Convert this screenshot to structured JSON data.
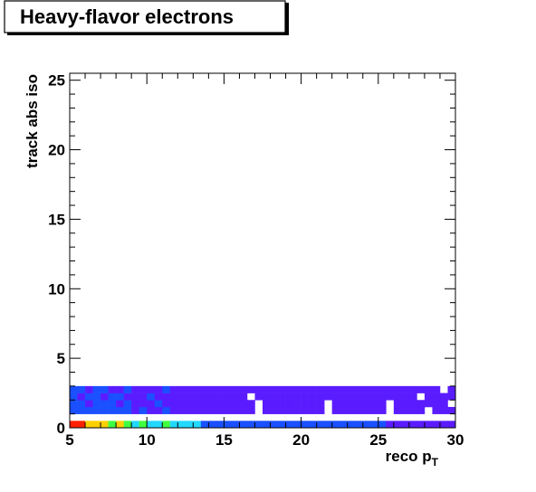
{
  "chart_data": {
    "type": "heatmap",
    "title": "Heavy-flavor electrons",
    "xlabel": "reco p",
    "xlabel_subscript": "T",
    "ylabel": "track abs iso",
    "xlim": [
      5,
      30
    ],
    "ylim": [
      0,
      25.5
    ],
    "x_ticks": [
      "5",
      "10",
      "15",
      "20",
      "25",
      "30"
    ],
    "y_ticks": [
      "0",
      "5",
      "10",
      "15",
      "20",
      "25"
    ],
    "x_bin_width": 0.5,
    "colormap": "rainbow (violet = low, red = high)",
    "rows": [
      {
        "name": "iso 0-0.5",
        "y_range": [
          0,
          0.5
        ],
        "values": [
          10,
          10,
          9,
          8,
          9,
          7,
          8,
          6,
          5,
          6,
          5,
          5,
          6,
          4,
          4,
          5,
          4,
          3,
          3,
          3,
          3,
          3,
          3,
          3,
          2,
          2,
          2,
          2,
          2,
          2,
          2,
          2,
          2,
          2,
          2,
          2,
          2,
          2,
          2,
          2,
          2,
          1,
          1,
          1,
          1,
          1,
          1,
          1,
          1,
          1
        ]
      },
      {
        "name": "iso 0.5-1.0",
        "y_range": [
          0.5,
          1.0
        ],
        "values": [
          0,
          0,
          0,
          0,
          0,
          0,
          0,
          0,
          0,
          0,
          0,
          0,
          0,
          0,
          0,
          0,
          0,
          0,
          0,
          0,
          0,
          0,
          0,
          0,
          0,
          0,
          0,
          0,
          0,
          0,
          0,
          0,
          0,
          0,
          0,
          0,
          0,
          0,
          0,
          0,
          0,
          0,
          0,
          0,
          0,
          0,
          0,
          0,
          0,
          0
        ]
      },
      {
        "name": "iso 1.0-1.5",
        "y_range": [
          1.0,
          1.5
        ],
        "values": [
          2,
          2,
          3,
          2,
          2,
          2,
          2,
          2,
          1,
          2,
          1,
          1,
          2,
          1,
          1,
          1,
          1,
          1,
          1,
          1,
          1,
          1,
          1,
          1,
          0,
          1,
          1,
          1,
          1,
          1,
          1,
          1,
          1,
          0,
          1,
          1,
          1,
          1,
          1,
          1,
          1,
          0,
          1,
          1,
          1,
          1,
          0,
          1,
          1,
          1
        ]
      },
      {
        "name": "iso 1.5-2.0",
        "y_range": [
          1.5,
          2.0
        ],
        "values": [
          2,
          2,
          1,
          2,
          2,
          2,
          1,
          2,
          1,
          1,
          1,
          2,
          1,
          1,
          1,
          1,
          1,
          1,
          1,
          1,
          1,
          1,
          1,
          1,
          0,
          1,
          1,
          1,
          1,
          1,
          1,
          1,
          1,
          0,
          1,
          1,
          1,
          1,
          1,
          1,
          1,
          0,
          1,
          1,
          1,
          1,
          1,
          1,
          1,
          0
        ]
      },
      {
        "name": "iso 2.0-2.5",
        "y_range": [
          2.0,
          2.5
        ],
        "values": [
          2,
          1,
          2,
          2,
          1,
          2,
          2,
          1,
          1,
          1,
          2,
          1,
          1,
          1,
          1,
          1,
          1,
          1,
          1,
          1,
          1,
          1,
          1,
          0,
          1,
          1,
          1,
          1,
          1,
          1,
          1,
          1,
          1,
          1,
          1,
          1,
          1,
          1,
          1,
          1,
          1,
          1,
          1,
          1,
          1,
          0,
          1,
          1,
          1,
          1
        ]
      },
      {
        "name": "iso 2.5-3.0",
        "y_range": [
          2.5,
          3.0
        ],
        "values": [
          2,
          2,
          1,
          2,
          2,
          1,
          1,
          2,
          1,
          1,
          1,
          1,
          2,
          1,
          1,
          1,
          1,
          1,
          1,
          1,
          1,
          1,
          1,
          1,
          1,
          1,
          1,
          1,
          1,
          1,
          1,
          1,
          1,
          1,
          1,
          1,
          1,
          1,
          1,
          1,
          1,
          1,
          1,
          1,
          1,
          1,
          1,
          1,
          0,
          1
        ]
      }
    ],
    "grid": false,
    "legend": "none"
  },
  "colors": {
    "background": "#ffffff",
    "frame": "#000000",
    "low": "#5a1cff",
    "mid_low": "#1a50ff",
    "mid": "#22d8ff",
    "mid_high": "#40ff40",
    "high_mid": "#ffd000",
    "high": "#ff2000"
  }
}
